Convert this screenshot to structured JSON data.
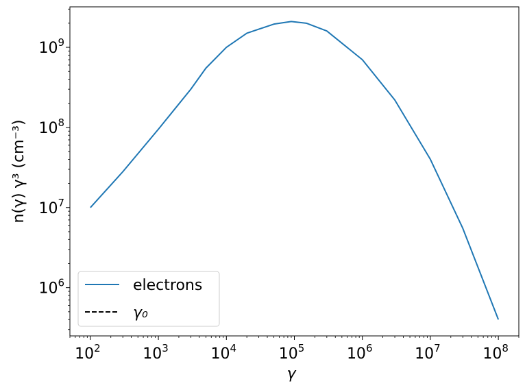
{
  "chart_data": {
    "type": "line",
    "xscale": "log",
    "yscale": "log",
    "xlim": [
      50,
      200000000
    ],
    "ylim": [
      250000,
      3200000000
    ],
    "xlabel": "γ",
    "ylabel": "n(γ) γ³   (cm⁻³)",
    "x_ticks": [
      {
        "value": 100,
        "base": "10",
        "exp": "2"
      },
      {
        "value": 1000,
        "base": "10",
        "exp": "3"
      },
      {
        "value": 10000,
        "base": "10",
        "exp": "4"
      },
      {
        "value": 100000,
        "base": "10",
        "exp": "5"
      },
      {
        "value": 1000000,
        "base": "10",
        "exp": "6"
      },
      {
        "value": 10000000,
        "base": "10",
        "exp": "7"
      },
      {
        "value": 100000000,
        "base": "10",
        "exp": "8"
      }
    ],
    "y_ticks": [
      {
        "value": 1000000,
        "base": "10",
        "exp": "6"
      },
      {
        "value": 10000000,
        "base": "10",
        "exp": "7"
      },
      {
        "value": 100000000,
        "base": "10",
        "exp": "8"
      },
      {
        "value": 1000000000,
        "base": "10",
        "exp": "9"
      }
    ],
    "legend_position": "lower-left",
    "grid": false,
    "series": [
      {
        "name": "electrons",
        "color": "#1f77b4",
        "style": "solid",
        "points": [
          [
            100,
            10000000
          ],
          [
            300,
            28000000
          ],
          [
            1000,
            95000000
          ],
          [
            3000,
            300000000
          ],
          [
            5000,
            550000000
          ],
          [
            10000,
            1000000000
          ],
          [
            20000,
            1500000000
          ],
          [
            50000,
            1950000000
          ],
          [
            90000,
            2100000000
          ],
          [
            150000,
            2000000000
          ],
          [
            300000,
            1600000000
          ],
          [
            1000000,
            700000000
          ],
          [
            3000000,
            220000000
          ],
          [
            10000000,
            40000000
          ],
          [
            30000000,
            5500000
          ],
          [
            100000000,
            400000
          ]
        ]
      },
      {
        "name": "γ₀",
        "color": "#000000",
        "style": "dashed",
        "points": []
      }
    ]
  }
}
